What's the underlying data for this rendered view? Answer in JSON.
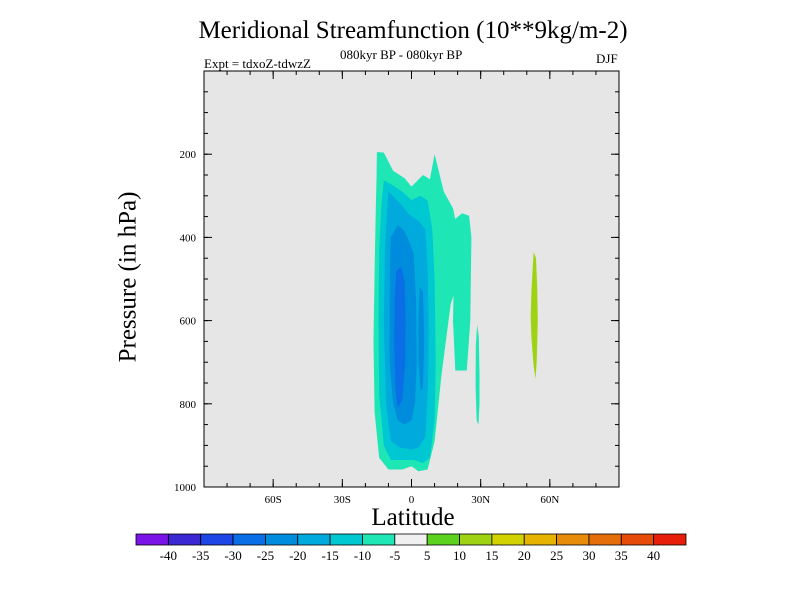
{
  "chart_data": {
    "type": "heatmap",
    "title": "Meridional Streamfunction (10**9kg/m-2)",
    "subtitle": "080kyr BP - 080kyr BP",
    "left_note": "Expt = tdxoZ-tdwzZ",
    "right_note": "DJF",
    "xlabel": "Latitude",
    "ylabel": "Pressure (in hPa)",
    "x_ticks": [
      {
        "value": -60,
        "label": "60S"
      },
      {
        "value": -30,
        "label": "30S"
      },
      {
        "value": 0,
        "label": "0"
      },
      {
        "value": 30,
        "label": "30N"
      },
      {
        "value": 60,
        "label": "60N"
      }
    ],
    "y_ticks": [
      {
        "value": 200,
        "label": "200"
      },
      {
        "value": 400,
        "label": "400"
      },
      {
        "value": 600,
        "label": "600"
      },
      {
        "value": 800,
        "label": "800"
      },
      {
        "value": 1000,
        "label": "1000"
      }
    ],
    "xlim": [
      -90,
      90
    ],
    "ylim": [
      0,
      1000
    ],
    "y_reversed": true,
    "background_color": "#e6e6e6",
    "colorbar": {
      "levels": [
        -40,
        -35,
        -30,
        -25,
        -20,
        -15,
        -10,
        -5,
        5,
        10,
        15,
        20,
        25,
        30,
        35,
        40
      ],
      "colors": [
        "#7b14e6",
        "#3c28d2",
        "#1e46e6",
        "#0a6ee6",
        "#008cdc",
        "#00aadc",
        "#00c8d2",
        "#1ee6b4",
        "#f0f0f0",
        "#5ad21e",
        "#a0d214",
        "#d2d200",
        "#e6b400",
        "#e68c0a",
        "#e66e0a",
        "#e64b0a",
        "#e61e0a"
      ]
    },
    "regions": [
      {
        "value_class": -10,
        "polygon": [
          [
            -15,
            195
          ],
          [
            -12,
            196
          ],
          [
            -8,
            240
          ],
          [
            -3,
            258
          ],
          [
            0,
            278
          ],
          [
            5,
            250
          ],
          [
            8,
            260
          ],
          [
            10,
            200
          ],
          [
            14,
            290
          ],
          [
            18,
            330
          ],
          [
            21,
            410
          ],
          [
            20,
            510
          ],
          [
            17,
            560
          ],
          [
            13,
            730
          ],
          [
            10,
            890
          ],
          [
            7,
            958
          ],
          [
            3,
            962
          ],
          [
            0,
            950
          ],
          [
            -4,
            958
          ],
          [
            -10,
            958
          ],
          [
            -14,
            930
          ],
          [
            -16,
            820
          ],
          [
            -16.5,
            650
          ],
          [
            -16,
            480
          ],
          [
            -15.5,
            330
          ],
          [
            -15.2,
            260
          ]
        ]
      },
      {
        "value_class": -10,
        "polygon": [
          [
            19,
            355
          ],
          [
            22,
            342
          ],
          [
            25,
            348
          ],
          [
            26,
            400
          ],
          [
            25.5,
            600
          ],
          [
            24,
            720
          ],
          [
            19,
            720
          ],
          [
            18,
            600
          ],
          [
            18.5,
            460
          ]
        ]
      },
      {
        "value_class": -10,
        "polygon": [
          [
            28.5,
            610
          ],
          [
            29.2,
            640
          ],
          [
            29.5,
            730
          ],
          [
            29.5,
            800
          ],
          [
            29,
            850
          ],
          [
            28.3,
            840
          ],
          [
            27.8,
            760
          ],
          [
            27.9,
            660
          ]
        ]
      },
      {
        "value_class": -15,
        "polygon": [
          [
            -12,
            263
          ],
          [
            -8,
            275
          ],
          [
            -4,
            290
          ],
          [
            0,
            310
          ],
          [
            4,
            300
          ],
          [
            7,
            312
          ],
          [
            9,
            380
          ],
          [
            10,
            500
          ],
          [
            10.5,
            700
          ],
          [
            10,
            840
          ],
          [
            8,
            930
          ],
          [
            5,
            942
          ],
          [
            1,
            935
          ],
          [
            -3,
            935
          ],
          [
            -9,
            935
          ],
          [
            -12,
            900
          ],
          [
            -14,
            780
          ],
          [
            -14.3,
            600
          ],
          [
            -14,
            430
          ],
          [
            -13,
            320
          ]
        ]
      },
      {
        "value_class": -20,
        "polygon": [
          [
            -10,
            290
          ],
          [
            -5,
            318
          ],
          [
            -1,
            345
          ],
          [
            3,
            360
          ],
          [
            6,
            380
          ],
          [
            7,
            470
          ],
          [
            7.5,
            620
          ],
          [
            7.2,
            760
          ],
          [
            6,
            880
          ],
          [
            3,
            905
          ],
          [
            0,
            910
          ],
          [
            -5,
            905
          ],
          [
            -9,
            890
          ],
          [
            -11,
            800
          ],
          [
            -12,
            600
          ],
          [
            -11.5,
            420
          ]
        ]
      },
      {
        "value_class": -25,
        "polygon": [
          [
            -9,
            400
          ],
          [
            -6,
            370
          ],
          [
            -3,
            385
          ],
          [
            -1,
            410
          ],
          [
            1,
            440
          ],
          [
            2,
            560
          ],
          [
            2.3,
            700
          ],
          [
            1.5,
            800
          ],
          [
            0,
            840
          ],
          [
            -3,
            850
          ],
          [
            -6,
            840
          ],
          [
            -8,
            800
          ],
          [
            -9.5,
            700
          ],
          [
            -9.5,
            560
          ],
          [
            -9.3,
            450
          ]
        ]
      },
      {
        "value_class": -25,
        "polygon": [
          [
            3.5,
            520
          ],
          [
            5,
            530
          ],
          [
            5.5,
            640
          ],
          [
            5,
            760
          ],
          [
            4,
            770
          ],
          [
            3,
            700
          ],
          [
            3,
            600
          ]
        ]
      },
      {
        "value_class": -30,
        "polygon": [
          [
            -6.5,
            480
          ],
          [
            -4.5,
            470
          ],
          [
            -3,
            505
          ],
          [
            -2.5,
            600
          ],
          [
            -2.7,
            700
          ],
          [
            -4,
            790
          ],
          [
            -6,
            810
          ],
          [
            -7,
            760
          ],
          [
            -7.5,
            650
          ],
          [
            -7.3,
            540
          ]
        ]
      },
      {
        "value_class": 10,
        "polygon": [
          [
            53,
            435
          ],
          [
            54,
            450
          ],
          [
            54.5,
            520
          ],
          [
            54.8,
            600
          ],
          [
            54.3,
            700
          ],
          [
            53.8,
            740
          ],
          [
            53,
            710
          ],
          [
            52,
            640
          ],
          [
            51.7,
            590
          ],
          [
            52,
            530
          ],
          [
            52.6,
            470
          ]
        ]
      }
    ]
  }
}
